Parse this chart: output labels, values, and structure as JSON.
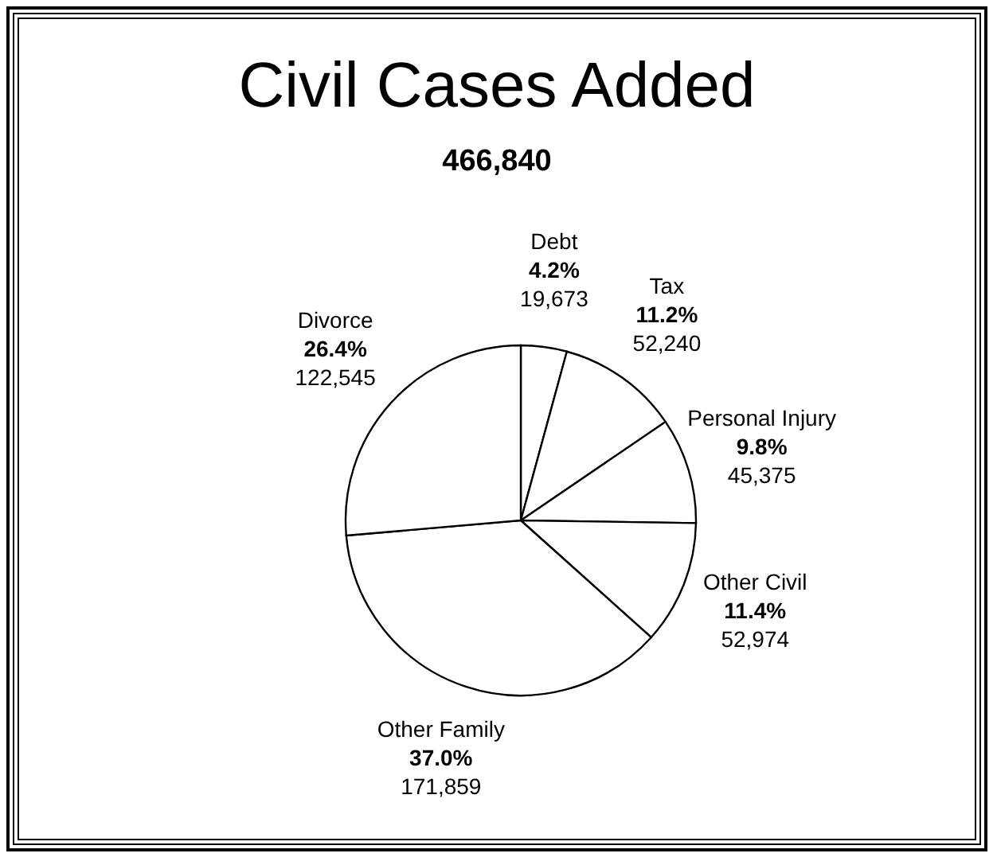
{
  "chart_data": {
    "type": "pie",
    "title": "Civil Cases Added",
    "subtitle": "466,840",
    "categories": [
      "Debt",
      "Tax",
      "Personal Injury",
      "Other Civil",
      "Other Family",
      "Divorce"
    ],
    "values": [
      19673,
      52240,
      45375,
      52974,
      171859,
      122545
    ],
    "value_labels": [
      "4.2%\n19,673",
      "11.2%\n52,240",
      "9.8%\n45,375",
      "11.4%\n52,974",
      "37.0%\n171,859",
      "26.4%\n122,545"
    ],
    "colors": [
      "#ffffff",
      "#ffffff",
      "#ffffff",
      "#ffffff",
      "#ffffff",
      "#ffffff"
    ]
  }
}
